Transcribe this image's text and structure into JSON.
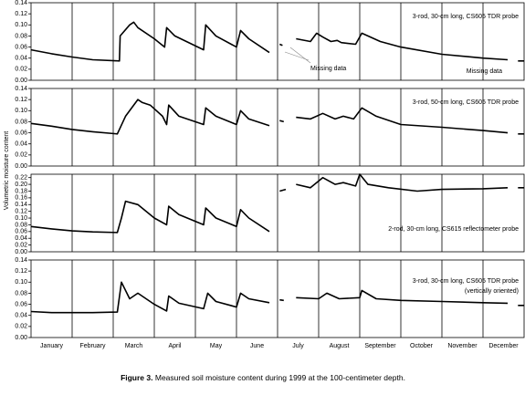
{
  "y_label": "Volumetric moisture content",
  "categories": [
    "January",
    "February",
    "March",
    "April",
    "May",
    "June",
    "July",
    "August",
    "September",
    "October",
    "November",
    "December"
  ],
  "xlim": [
    0,
    12
  ],
  "caption": {
    "bold": "Figure 3.",
    "text": "Measured soil moisture content during 1999 at the 100-centimeter depth."
  },
  "chart_data": [
    {
      "type": "line",
      "color": "#000000",
      "annotations": [
        "3-rod, 30-cm long, CS605 TDR probe",
        "Missing data",
        "Missing data"
      ],
      "ylim": [
        0,
        0.14
      ],
      "yticks": [
        {
          "value": 0,
          "label": "0.00"
        },
        {
          "value": 0.02,
          "label": "0.02"
        },
        {
          "value": 0.04,
          "label": "0.04"
        },
        {
          "value": 0.06,
          "label": "0.06"
        },
        {
          "value": 0.08,
          "label": "0.08"
        },
        {
          "value": 0.1,
          "label": "0.10"
        },
        {
          "value": 0.12,
          "label": "0.12"
        },
        {
          "value": 0.14,
          "label": "0.14"
        }
      ],
      "x": [
        0,
        0.5,
        1,
        1.5,
        2.15,
        2.17,
        2.4,
        2.5,
        2.6,
        3.0,
        3.25,
        3.3,
        3.5,
        4.2,
        4.25,
        4.5,
        5.0,
        5.1,
        5.3,
        5.8,
        5.9,
        6.05,
        6.12,
        6.2,
        6.45,
        6.8,
        6.95,
        7.1,
        7.3,
        7.45,
        7.55,
        7.9,
        8.05,
        8.5,
        9,
        10,
        11,
        11.6,
        11.7,
        11.85,
        12
      ],
      "values": [
        0.055,
        0.048,
        0.042,
        0.037,
        0.035,
        0.08,
        0.1,
        0.105,
        0.095,
        0.075,
        0.06,
        0.095,
        0.08,
        0.055,
        0.1,
        0.08,
        0.06,
        0.09,
        0.075,
        0.05,
        null,
        0.065,
        0.063,
        null,
        0.075,
        0.07,
        0.085,
        0.078,
        0.07,
        0.072,
        0.068,
        0.065,
        0.085,
        0.07,
        0.06,
        0.047,
        0.04,
        0.037,
        null,
        0.035,
        0.035
      ]
    },
    {
      "type": "line",
      "color": "#000000",
      "annotations": [
        "3-rod, 50-cm long, CS605 TDR probe"
      ],
      "ylim": [
        0,
        0.14
      ],
      "yticks": [
        {
          "value": 0,
          "label": "0.00"
        },
        {
          "value": 0.02,
          "label": "0.02"
        },
        {
          "value": 0.04,
          "label": "0.04"
        },
        {
          "value": 0.06,
          "label": "0.06"
        },
        {
          "value": 0.08,
          "label": "0.08"
        },
        {
          "value": 0.1,
          "label": "0.10"
        },
        {
          "value": 0.12,
          "label": "0.12"
        },
        {
          "value": 0.14,
          "label": "0.14"
        }
      ],
      "x": [
        0,
        0.5,
        1,
        1.5,
        2.1,
        2.3,
        2.6,
        2.7,
        2.9,
        3.2,
        3.3,
        3.35,
        3.6,
        4.2,
        4.25,
        4.5,
        5.0,
        5.1,
        5.3,
        5.8,
        5.9,
        6.05,
        6.15,
        6.25,
        6.45,
        6.8,
        7.1,
        7.4,
        7.6,
        7.85,
        8.05,
        8.4,
        9,
        10,
        11,
        11.6,
        11.7,
        11.85,
        12
      ],
      "values": [
        0.077,
        0.072,
        0.066,
        0.062,
        0.058,
        0.09,
        0.12,
        0.115,
        0.11,
        0.09,
        0.075,
        0.11,
        0.09,
        0.075,
        0.105,
        0.09,
        0.075,
        0.1,
        0.085,
        0.073,
        null,
        0.082,
        0.08,
        null,
        0.088,
        0.085,
        0.095,
        0.085,
        0.09,
        0.085,
        0.105,
        0.09,
        0.075,
        0.07,
        0.064,
        0.06,
        null,
        0.058,
        0.058
      ]
    },
    {
      "type": "line",
      "color": "#000000",
      "annotations": [
        "2-rod, 30-cm long, CS615 reflectometer probe"
      ],
      "ylim": [
        0,
        0.23
      ],
      "yticks": [
        {
          "value": 0,
          "label": "0.00"
        },
        {
          "value": 0.02,
          "label": "0.02"
        },
        {
          "value": 0.04,
          "label": "0.04"
        },
        {
          "value": 0.06,
          "label": "0.06"
        },
        {
          "value": 0.08,
          "label": "0.08"
        },
        {
          "value": 0.1,
          "label": "0.10"
        },
        {
          "value": 0.12,
          "label": "0.12"
        },
        {
          "value": 0.14,
          "label": "0.14"
        },
        {
          "value": 0.16,
          "label": "0.16"
        },
        {
          "value": 0.18,
          "label": "0.18"
        },
        {
          "value": 0.2,
          "label": "0.20"
        },
        {
          "value": 0.22,
          "label": "0.22"
        }
      ],
      "x": [
        0,
        0.5,
        1,
        1.5,
        2.1,
        2.2,
        2.3,
        2.6,
        3.0,
        3.3,
        3.35,
        3.6,
        4.2,
        4.25,
        4.5,
        5.0,
        5.1,
        5.3,
        5.8,
        5.9,
        6.05,
        6.2,
        6.3,
        6.45,
        6.8,
        7.1,
        7.4,
        7.6,
        7.9,
        8.0,
        8.2,
        8.7,
        9.4,
        10,
        11,
        11.6,
        11.7,
        11.85,
        12
      ],
      "values": [
        0.075,
        0.068,
        0.062,
        0.059,
        0.057,
        0.1,
        0.15,
        0.14,
        0.1,
        0.08,
        0.135,
        0.11,
        0.08,
        0.13,
        0.1,
        0.075,
        0.125,
        0.1,
        0.06,
        null,
        0.18,
        0.185,
        null,
        0.2,
        0.19,
        0.22,
        0.2,
        0.205,
        0.195,
        0.23,
        0.2,
        0.19,
        0.18,
        0.185,
        0.187,
        0.19,
        null,
        0.19,
        0.19
      ]
    },
    {
      "type": "line",
      "color": "#000000",
      "annotations": [
        "3-rod, 30-cm long, CS605 TDR probe",
        "(vertically oriented)"
      ],
      "ylim": [
        0,
        0.14
      ],
      "yticks": [
        {
          "value": 0,
          "label": "0.00"
        },
        {
          "value": 0.02,
          "label": "0.02"
        },
        {
          "value": 0.04,
          "label": "0.04"
        },
        {
          "value": 0.06,
          "label": "0.06"
        },
        {
          "value": 0.08,
          "label": "0.08"
        },
        {
          "value": 0.1,
          "label": "0.10"
        },
        {
          "value": 0.12,
          "label": "0.12"
        },
        {
          "value": 0.14,
          "label": "0.14"
        }
      ],
      "x": [
        0,
        0.5,
        1,
        1.5,
        2.1,
        2.2,
        2.4,
        2.6,
        3.0,
        3.3,
        3.35,
        3.6,
        4.2,
        4.3,
        4.5,
        5.0,
        5.1,
        5.3,
        5.8,
        5.9,
        6.05,
        6.15,
        6.25,
        6.45,
        7.0,
        7.2,
        7.5,
        8.0,
        8.05,
        8.4,
        9,
        10,
        11,
        11.6,
        11.7,
        11.85,
        12
      ],
      "values": [
        0.047,
        0.045,
        0.045,
        0.045,
        0.046,
        0.1,
        0.07,
        0.08,
        0.06,
        0.048,
        0.075,
        0.062,
        0.052,
        0.08,
        0.065,
        0.055,
        0.08,
        0.07,
        0.063,
        null,
        0.068,
        0.067,
        null,
        0.072,
        0.07,
        0.08,
        0.07,
        0.072,
        0.085,
        0.07,
        0.067,
        0.065,
        0.063,
        0.062,
        null,
        0.058,
        0.058
      ]
    }
  ]
}
